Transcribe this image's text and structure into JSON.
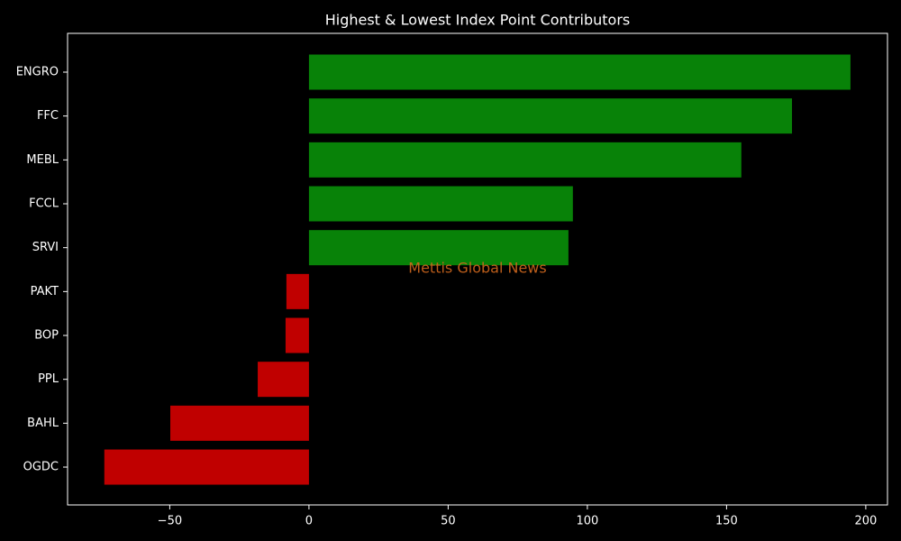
{
  "chart_data": {
    "type": "barh",
    "title": "Highest & Lowest Index Point Contributors",
    "watermark": "Mettis Global News",
    "categories": [
      "ENGRO",
      "FFC",
      "MEBL",
      "FCCL",
      "SRVI",
      "PAKT",
      "BOP",
      "PPL",
      "BAHL",
      "OGDC"
    ],
    "values": [
      194.5,
      173.5,
      155.3,
      94.8,
      93.2,
      -8.1,
      -8.4,
      -18.4,
      -49.8,
      -73.5
    ],
    "colors": [
      "#088208",
      "#088208",
      "#088208",
      "#088208",
      "#088208",
      "#c00000",
      "#c00000",
      "#c00000",
      "#c00000",
      "#c00000"
    ],
    "xlim": [
      -86.7,
      207.8
    ],
    "xticks": [
      {
        "value": -50,
        "label": "−50"
      },
      0,
      50,
      100,
      150,
      200
    ]
  }
}
